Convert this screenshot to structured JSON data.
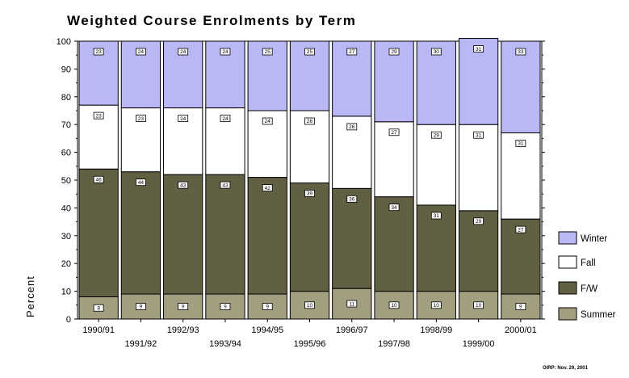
{
  "chart_data": {
    "type": "bar",
    "stacked": true,
    "percent": true,
    "title": "Weighted Course Enrolments by Term",
    "ylabel": "Percent",
    "xlabel": "",
    "ylim": [
      0,
      100
    ],
    "yticks": [
      0,
      10,
      20,
      30,
      40,
      50,
      60,
      70,
      80,
      90,
      100
    ],
    "grid": false,
    "legend_position": "right",
    "categories": [
      "1990/91",
      "1991/92",
      "1992/93",
      "1993/94",
      "1994/95",
      "1995/96",
      "1996/97",
      "1997/98",
      "1998/99",
      "1999/00",
      "2000/01"
    ],
    "series": [
      {
        "name": "Summer",
        "color": "#a19f80",
        "values": [
          8,
          9,
          9,
          9,
          9,
          10,
          11,
          10,
          10,
          10,
          9
        ]
      },
      {
        "name": "F/W",
        "color": "#626042",
        "values": [
          46,
          44,
          43,
          43,
          42,
          39,
          36,
          34,
          31,
          29,
          27
        ]
      },
      {
        "name": "Fall",
        "color": "#ffffff",
        "values": [
          23,
          23,
          24,
          24,
          24,
          26,
          26,
          27,
          29,
          31,
          31
        ]
      },
      {
        "name": "Winter",
        "color": "#b9b8f5",
        "values": [
          23,
          24,
          24,
          24,
          25,
          25,
          27,
          29,
          30,
          31,
          33
        ]
      }
    ],
    "legend_order": [
      "Winter",
      "Fall",
      "F/W",
      "Summer"
    ]
  },
  "source_note": "OIRP: Nov. 29, 2001"
}
